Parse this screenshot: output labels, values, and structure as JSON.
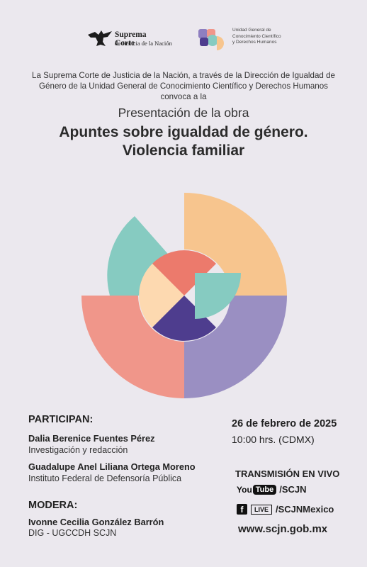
{
  "logos": {
    "scjn_line1": "Suprema Corte",
    "scjn_line2": "de Justicia de la Nación",
    "ugccdh_line1": "Unidad General de",
    "ugccdh_line2": "Conocimiento Científico",
    "ugccdh_line3": "y Derechos Humanos"
  },
  "intro": {
    "line1": "La Suprema Corte de Justicia de la Nación, a través de la Dirección de Igualdad de",
    "line2": "Género de la Unidad General de Conocimiento Científico y Derechos Humanos",
    "line3": "convoca a la"
  },
  "event": {
    "subtitle": "Presentación de la obra",
    "title_line1": "Apuntes sobre igualdad de género.",
    "title_line2": "Violencia familiar"
  },
  "participants": {
    "heading": "PARTICIPAN:",
    "people": [
      {
        "name": "Dalia Berenice Fuentes Pérez",
        "role": "Investigación y redacción"
      },
      {
        "name": "Guadalupe Anel Liliana Ortega Moreno",
        "role": "Instituto Federal de Defensoría Pública"
      }
    ]
  },
  "moderator": {
    "heading": "MODERA:",
    "name": "Ivonne Cecilia González Barrón",
    "role": "DIG - UGCCDH SCJN"
  },
  "schedule": {
    "date": "26 de febrero de 2025",
    "time": "10:00 hrs. (CDMX)"
  },
  "broadcast": {
    "heading": "TRANSMISIÓN EN VIVO",
    "youtube_you": "You",
    "youtube_tube": "Tube",
    "youtube_handle": "/SCJN",
    "facebook_glyph": "f",
    "live_badge": "LIVE",
    "facebook_handle": "/SCJNMexico",
    "website": "www.scjn.gob.mx"
  },
  "colors": {
    "background": "#ebe8ee",
    "teal": "#86cbc1",
    "peach": "#f7c58e",
    "coral": "#f0968a",
    "lavender": "#9a8fc2",
    "salmon": "#ec7a6c",
    "cream": "#fdd9b0",
    "indigo": "#4e3d8e"
  }
}
